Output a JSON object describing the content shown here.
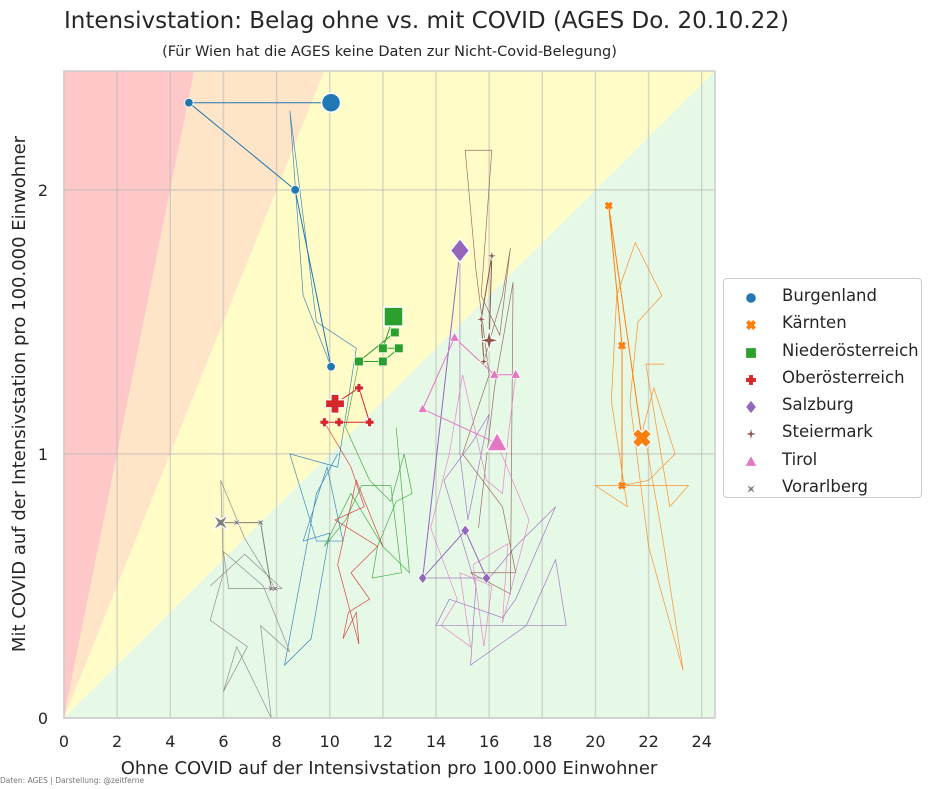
{
  "title": "Intensivstation: Belag ohne vs. mit COVID (AGES Do. 20.10.22)",
  "subtitle": "(Für Wien hat die AGES keine Daten zur Nicht-Covid-Belegung)",
  "source_note": "Daten: AGES | Darstellung: @zeitferne",
  "chart_data": {
    "type": "scatter",
    "title": "Intensivstation: Belag ohne vs. mit COVID (AGES Do. 20.10.22)",
    "subtitle": "(Für Wien hat die AGES keine Daten zur Nicht-Covid-Belegung)",
    "xlabel": "Ohne COVID auf der Intensivstation pro 100.000 Einwohner",
    "ylabel": "Mit COVID auf der Intensivstation pro 100.000 Einwohner",
    "xlim": [
      0,
      24.5
    ],
    "ylim": [
      0,
      2.45
    ],
    "xticks": [
      0,
      2,
      4,
      6,
      8,
      10,
      12,
      14,
      16,
      18,
      20,
      22,
      24
    ],
    "yticks": [
      0,
      1,
      2
    ],
    "grid": true,
    "legend_position": "right",
    "background_bands": [
      {
        "color": "#ffc8c8",
        "from_slope": "infinity",
        "to_slope": 0.5
      },
      {
        "color": "#ffe5c8",
        "from_slope": 0.5,
        "to_slope": 0.25
      },
      {
        "color": "#fffcc8",
        "from_slope": 0.25,
        "to_slope": 0.1
      },
      {
        "color": "#e6f9e6",
        "from_slope": 0.1,
        "to_slope": 0
      }
    ],
    "series": [
      {
        "name": "Burgenland",
        "marker": "circle",
        "color": "#1f77b4",
        "points": [
          {
            "x": 4.7,
            "y": 2.33
          },
          {
            "x": 8.7,
            "y": 2.0
          },
          {
            "x": 10.05,
            "y": 1.33
          }
        ],
        "current": {
          "x": 10.05,
          "y": 2.33
        },
        "trail": [
          [
            10.05,
            1.33
          ],
          [
            9.0,
            1.6
          ],
          [
            8.5,
            2.3
          ],
          [
            9.5,
            1.5
          ],
          [
            11.0,
            1.4
          ],
          [
            10.3,
            0.95
          ],
          [
            8.5,
            1.0
          ],
          [
            9.5,
            0.67
          ],
          [
            10.5,
            0.67
          ],
          [
            9.9,
            0.95
          ],
          [
            9.0,
            0.67
          ],
          [
            10.0,
            0.7
          ],
          [
            9.3,
            0.3
          ],
          [
            8.3,
            0.2
          ],
          [
            9.5,
            0.85
          ],
          [
            10.3,
            1.0
          ]
        ]
      },
      {
        "name": "Kärnten",
        "marker": "x",
        "color": "#ff7f0e",
        "points": [
          {
            "x": 20.5,
            "y": 1.94
          },
          {
            "x": 21.0,
            "y": 1.41
          },
          {
            "x": 21.0,
            "y": 0.88
          }
        ],
        "current": {
          "x": 21.75,
          "y": 1.06
        },
        "trail": [
          [
            21.0,
            0.88
          ],
          [
            22.0,
            0.9
          ],
          [
            23.0,
            1.0
          ],
          [
            22.2,
            1.25
          ],
          [
            21.8,
            1.1
          ],
          [
            22.5,
            0.7
          ],
          [
            23.3,
            0.18
          ],
          [
            22.0,
            0.65
          ],
          [
            21.3,
            1.2
          ],
          [
            21.6,
            1.5
          ],
          [
            22.5,
            1.6
          ],
          [
            21.5,
            1.8
          ],
          [
            20.8,
            1.6
          ],
          [
            20.6,
            1.2
          ],
          [
            21.2,
            0.8
          ],
          [
            20.0,
            0.88
          ],
          [
            23.5,
            0.88
          ],
          [
            22.8,
            0.8
          ],
          [
            21.9,
            1.34
          ],
          [
            22.6,
            1.34
          ]
        ]
      },
      {
        "name": "Niederösterreich",
        "marker": "square",
        "color": "#2ca02c",
        "points": [
          {
            "x": 12.0,
            "y": 1.4
          },
          {
            "x": 12.6,
            "y": 1.4
          },
          {
            "x": 12.0,
            "y": 1.35
          },
          {
            "x": 11.1,
            "y": 1.35
          },
          {
            "x": 12.45,
            "y": 1.46
          }
        ],
        "current": {
          "x": 12.4,
          "y": 1.52
        },
        "trail": [
          [
            11.1,
            1.35
          ],
          [
            10.6,
            1.1
          ],
          [
            11.5,
            0.9
          ],
          [
            12.3,
            0.82
          ],
          [
            12.8,
            1.0
          ],
          [
            13.1,
            0.85
          ],
          [
            12.5,
            0.82
          ],
          [
            11.8,
            0.65
          ],
          [
            11.6,
            0.53
          ],
          [
            12.7,
            0.55
          ],
          [
            12.3,
            0.88
          ],
          [
            11.2,
            0.88
          ],
          [
            10.6,
            0.75
          ],
          [
            9.8,
            0.65
          ],
          [
            10.8,
            0.85
          ],
          [
            12.0,
            0.65
          ],
          [
            13.0,
            0.55
          ],
          [
            12.5,
            1.1
          ]
        ]
      },
      {
        "name": "Oberösterreich",
        "marker": "plus",
        "color": "#d62728",
        "points": [
          {
            "x": 11.1,
            "y": 1.25
          },
          {
            "x": 11.5,
            "y": 1.12
          },
          {
            "x": 10.35,
            "y": 1.12
          },
          {
            "x": 9.8,
            "y": 1.12
          }
        ],
        "current": {
          "x": 10.2,
          "y": 1.19
        },
        "trail": [
          [
            9.8,
            1.12
          ],
          [
            10.8,
            0.95
          ],
          [
            11.3,
            0.8
          ],
          [
            10.2,
            0.75
          ],
          [
            11.8,
            0.65
          ],
          [
            10.8,
            0.55
          ],
          [
            11.5,
            0.45
          ],
          [
            10.7,
            0.4
          ],
          [
            10.5,
            0.3
          ],
          [
            11.0,
            0.4
          ],
          [
            11.1,
            0.28
          ],
          [
            10.3,
            0.58
          ],
          [
            11.0,
            0.9
          ],
          [
            12.0,
            0.65
          ]
        ]
      },
      {
        "name": "Salzburg",
        "marker": "diamond",
        "color": "#9467bd",
        "points": [
          {
            "x": 13.5,
            "y": 0.53
          },
          {
            "x": 15.1,
            "y": 0.71
          },
          {
            "x": 15.9,
            "y": 0.53
          }
        ],
        "current": {
          "x": 14.9,
          "y": 1.77
        },
        "trail": [
          [
            13.5,
            0.53
          ],
          [
            16.0,
            0.53
          ],
          [
            17.0,
            0.65
          ],
          [
            18.5,
            0.8
          ],
          [
            17.0,
            0.45
          ],
          [
            16.5,
            0.38
          ],
          [
            14.5,
            0.45
          ],
          [
            14.0,
            0.35
          ],
          [
            18.9,
            0.35
          ],
          [
            18.5,
            0.6
          ],
          [
            17.4,
            0.35
          ],
          [
            15.3,
            0.2
          ],
          [
            15.5,
            0.5
          ],
          [
            14.3,
            0.9
          ],
          [
            15.4,
            1.05
          ],
          [
            16.0,
            1.15
          ],
          [
            15.2,
            0.75
          ],
          [
            14.9,
            1.0
          ],
          [
            14.9,
            1.77
          ]
        ]
      },
      {
        "name": "Steiermark",
        "marker": "star4",
        "color": "#8c564b",
        "points": [
          {
            "x": 16.1,
            "y": 1.75
          },
          {
            "x": 15.7,
            "y": 1.51
          },
          {
            "x": 15.8,
            "y": 1.35
          }
        ],
        "current": {
          "x": 16.0,
          "y": 1.43
        },
        "trail": [
          [
            15.8,
            1.35
          ],
          [
            16.5,
            1.6
          ],
          [
            16.8,
            1.78
          ],
          [
            16.4,
            1.45
          ],
          [
            15.7,
            1.6
          ],
          [
            16.1,
            2.15
          ],
          [
            15.1,
            2.15
          ],
          [
            15.5,
            1.7
          ],
          [
            16.0,
            1.3
          ],
          [
            15.0,
            1.0
          ],
          [
            16.5,
            0.8
          ],
          [
            17.0,
            0.55
          ],
          [
            15.3,
            0.55
          ],
          [
            16.8,
            0.47
          ],
          [
            16.9,
            1.65
          ],
          [
            16.2,
            1.25
          ],
          [
            15.6,
            0.72
          ]
        ]
      },
      {
        "name": "Tirol",
        "marker": "triangle",
        "color": "#e377c2",
        "points": [
          {
            "x": 13.5,
            "y": 1.17
          },
          {
            "x": 14.7,
            "y": 1.44
          },
          {
            "x": 16.2,
            "y": 1.3
          },
          {
            "x": 17.0,
            "y": 1.3
          }
        ],
        "current": {
          "x": 16.3,
          "y": 1.04
        },
        "trail": [
          [
            17.0,
            1.3
          ],
          [
            16.7,
            1.05
          ],
          [
            16.5,
            0.85
          ],
          [
            15.9,
            0.9
          ],
          [
            15.0,
            1.3
          ],
          [
            14.5,
            1.0
          ],
          [
            13.8,
            0.72
          ],
          [
            14.8,
            0.45
          ],
          [
            14.2,
            0.35
          ],
          [
            15.3,
            0.27
          ],
          [
            14.9,
            0.55
          ],
          [
            16.1,
            0.5
          ],
          [
            15.8,
            0.27
          ],
          [
            15.4,
            0.58
          ],
          [
            16.7,
            0.66
          ],
          [
            16.5,
            0.36
          ],
          [
            17.5,
            0.75
          ],
          [
            16.3,
            1.04
          ]
        ]
      },
      {
        "name": "Vorarlberg",
        "marker": "star4x",
        "color": "#7f7f7f",
        "points": [
          {
            "x": 6.5,
            "y": 0.74
          },
          {
            "x": 7.4,
            "y": 0.74
          },
          {
            "x": 7.8,
            "y": 0.49
          },
          {
            "x": 7.95,
            "y": 0.49
          }
        ],
        "current": {
          "x": 5.9,
          "y": 0.74
        },
        "trail": [
          [
            7.95,
            0.49
          ],
          [
            6.8,
            0.68
          ],
          [
            5.9,
            0.9
          ],
          [
            6.0,
            0.55
          ],
          [
            5.5,
            0.37
          ],
          [
            6.9,
            0.27
          ],
          [
            6.0,
            0.1
          ],
          [
            6.5,
            0.27
          ],
          [
            7.8,
            0.0
          ],
          [
            7.4,
            0.35
          ],
          [
            8.5,
            0.25
          ],
          [
            7.5,
            0.5
          ],
          [
            6.0,
            0.63
          ],
          [
            6.2,
            0.49
          ],
          [
            8.2,
            0.49
          ],
          [
            6.8,
            0.62
          ],
          [
            5.5,
            0.5
          ]
        ]
      }
    ]
  }
}
